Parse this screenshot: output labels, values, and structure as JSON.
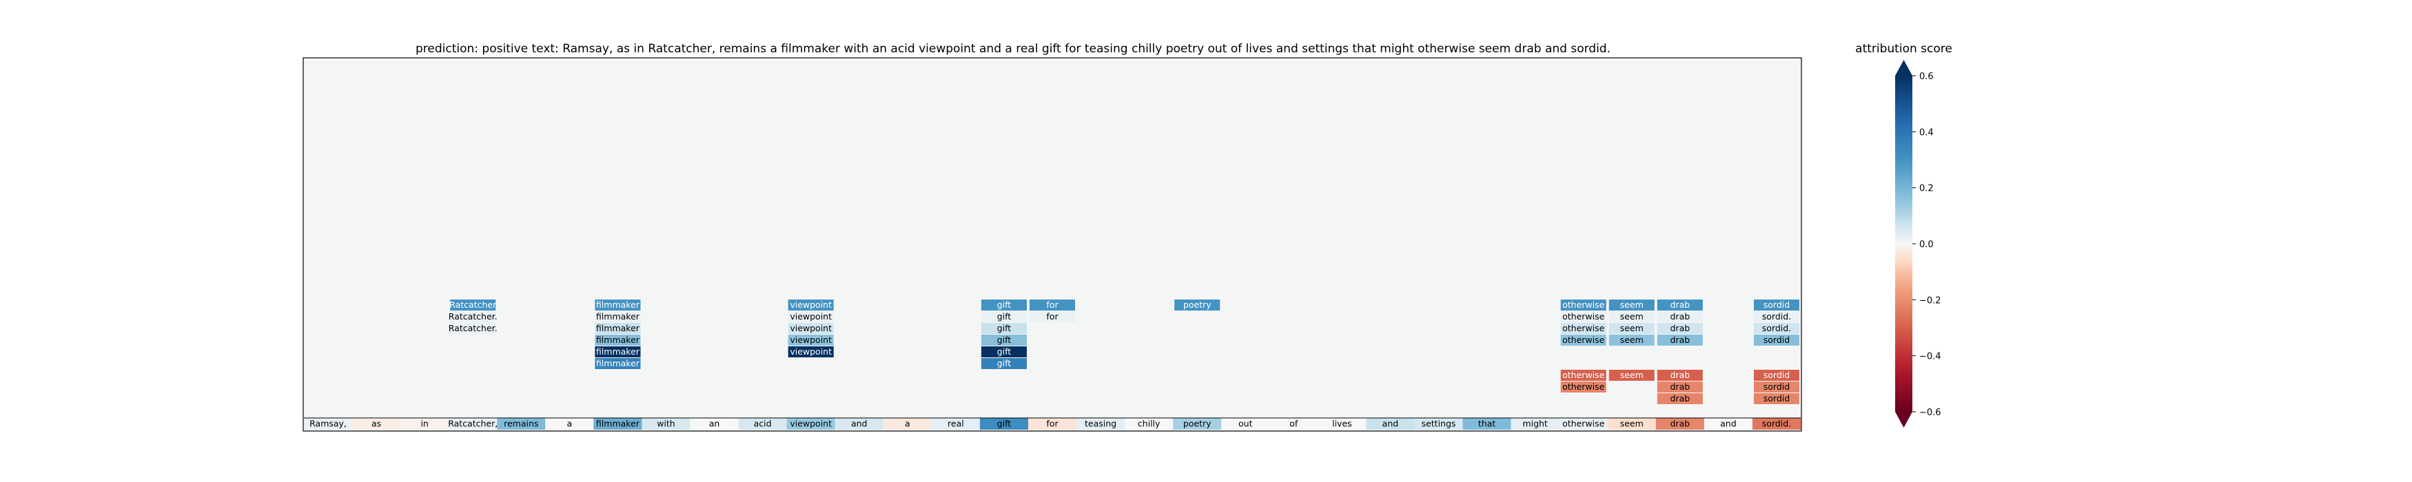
{
  "chart_data": {
    "type": "heatmap",
    "title": {
      "prediction_label": "prediction:",
      "prediction": "positive",
      "text_label": "text:",
      "text": "Ramsay, as in Ratcatcher, remains a filmmaker with an acid viewpoint and a real gift for teasing chilly poetry out of lives and settings that might otherwise seem drab and sordid."
    },
    "tokens": [
      "Ramsay,",
      "as",
      "in",
      "Ratcatcher,",
      "remains",
      "a",
      "filmmaker",
      "with",
      "an",
      "acid",
      "viewpoint",
      "and",
      "a",
      "real",
      "gift",
      "for",
      "teasing",
      "chilly",
      "poetry",
      "out",
      "of",
      "lives",
      "and",
      "settings",
      "that",
      "might",
      "otherwise",
      "seem",
      "drab",
      "and",
      "sordid."
    ],
    "base_row_scores": [
      0.02,
      -0.02,
      -0.01,
      0.02,
      0.18,
      0.0,
      0.22,
      0.05,
      0.0,
      0.05,
      0.14,
      0.05,
      -0.03,
      0.03,
      0.32,
      -0.04,
      0.03,
      0.0,
      0.12,
      0.0,
      0.0,
      0.0,
      0.07,
      0.05,
      0.18,
      0.03,
      0.02,
      -0.05,
      -0.22,
      0.0,
      -0.25
    ],
    "stack_cells": [
      {
        "token": "Ratcatcher",
        "level": 10,
        "score": 0.3,
        "text_color": "#ffffff"
      },
      {
        "token": "Ratcatcher.",
        "level": 9,
        "score": 0.02,
        "text_color": "#000000"
      },
      {
        "token": "Ratcatcher.",
        "level": 8,
        "score": 0.02,
        "text_color": "#000000"
      },
      {
        "token": "filmmaker",
        "level": 10,
        "score": 0.3,
        "text_color": "#ffffff"
      },
      {
        "token": "filmmaker",
        "level": 9,
        "score": 0.02,
        "text_color": "#000000"
      },
      {
        "token": "filmmaker",
        "level": 8,
        "score": 0.07,
        "text_color": "#000000"
      },
      {
        "token": "filmmaker",
        "level": 7,
        "score": 0.17,
        "text_color": "#000000"
      },
      {
        "token": "filmmaker",
        "level": 6,
        "score": 0.6,
        "text_color": "#ffffff"
      },
      {
        "token": "filmmaker",
        "level": 5,
        "score": 0.36,
        "text_color": "#ffffff"
      },
      {
        "token": "viewpoint",
        "level": 10,
        "score": 0.3,
        "text_color": "#ffffff"
      },
      {
        "token": "viewpoint",
        "level": 9,
        "score": 0.02,
        "text_color": "#000000"
      },
      {
        "token": "viewpoint",
        "level": 8,
        "score": 0.06,
        "text_color": "#000000"
      },
      {
        "token": "viewpoint",
        "level": 7,
        "score": 0.16,
        "text_color": "#000000"
      },
      {
        "token": "viewpoint",
        "level": 6,
        "score": 0.62,
        "text_color": "#ffffff"
      },
      {
        "token": "gift",
        "level": 10,
        "score": 0.3,
        "text_color": "#ffffff"
      },
      {
        "token": "gift",
        "level": 9,
        "score": 0.02,
        "text_color": "#000000"
      },
      {
        "token": "gift",
        "level": 8,
        "score": 0.07,
        "text_color": "#000000"
      },
      {
        "token": "gift",
        "level": 7,
        "score": 0.17,
        "text_color": "#000000"
      },
      {
        "token": "gift",
        "level": 6,
        "score": 0.62,
        "text_color": "#ffffff"
      },
      {
        "token": "gift",
        "level": 5,
        "score": 0.36,
        "text_color": "#ffffff"
      },
      {
        "token": "for",
        "level": 10,
        "score": 0.3,
        "text_color": "#ffffff"
      },
      {
        "token": "for",
        "level": 9,
        "score": 0.02,
        "text_color": "#000000"
      },
      {
        "token": "poetry",
        "level": 10,
        "score": 0.3,
        "text_color": "#ffffff"
      },
      {
        "token": "otherwise",
        "level": 10,
        "score": 0.3,
        "text_color": "#ffffff"
      },
      {
        "token": "otherwise",
        "level": 9,
        "score": 0.02,
        "text_color": "#000000"
      },
      {
        "token": "otherwise",
        "level": 8,
        "score": 0.06,
        "text_color": "#000000"
      },
      {
        "token": "otherwise",
        "level": 7,
        "score": 0.16,
        "text_color": "#000000"
      },
      {
        "token": "otherwise",
        "level": 4,
        "score": -0.3,
        "text_color": "#ffffff"
      },
      {
        "token": "otherwise",
        "level": 3,
        "score": -0.22,
        "text_color": "#000000"
      },
      {
        "token": "seem",
        "level": 10,
        "score": 0.3,
        "text_color": "#ffffff"
      },
      {
        "token": "seem",
        "level": 9,
        "score": 0.02,
        "text_color": "#000000"
      },
      {
        "token": "seem",
        "level": 8,
        "score": 0.06,
        "text_color": "#000000"
      },
      {
        "token": "seem",
        "level": 7,
        "score": 0.16,
        "text_color": "#000000"
      },
      {
        "token": "seem",
        "level": 4,
        "score": -0.3,
        "text_color": "#ffffff"
      },
      {
        "token": "drab",
        "level": 10,
        "score": 0.3,
        "text_color": "#ffffff"
      },
      {
        "token": "drab",
        "level": 9,
        "score": 0.02,
        "text_color": "#000000"
      },
      {
        "token": "drab",
        "level": 8,
        "score": 0.06,
        "text_color": "#000000"
      },
      {
        "token": "drab",
        "level": 7,
        "score": 0.17,
        "text_color": "#000000"
      },
      {
        "token": "drab",
        "level": 4,
        "score": -0.3,
        "text_color": "#ffffff"
      },
      {
        "token": "drab",
        "level": 3,
        "score": -0.22,
        "text_color": "#000000"
      },
      {
        "token": "drab",
        "level": 2,
        "score": -0.22,
        "text_color": "#000000"
      },
      {
        "token": "sordid",
        "level": 10,
        "score": 0.3,
        "text_color": "#ffffff"
      },
      {
        "token": "sordid.",
        "level": 9,
        "score": 0.02,
        "text_color": "#000000"
      },
      {
        "token": "sordid.",
        "level": 8,
        "score": 0.06,
        "text_color": "#000000"
      },
      {
        "token": "sordid",
        "level": 7,
        "score": 0.17,
        "text_color": "#000000"
      },
      {
        "token": "sordid",
        "level": 4,
        "score": -0.3,
        "text_color": "#ffffff"
      },
      {
        "token": "sordid",
        "level": 3,
        "score": -0.22,
        "text_color": "#000000"
      },
      {
        "token": "sordid",
        "level": 2,
        "score": -0.22,
        "text_color": "#000000"
      }
    ],
    "stack_columns": {
      "Ratcatcher": 3,
      "Ratcatcher.": 3,
      "filmmaker": 6,
      "viewpoint": 10,
      "gift": 14,
      "for": 15,
      "poetry": 18,
      "otherwise": 26,
      "seem": 27,
      "drab": 28,
      "sordid": 30,
      "sordid.": 30
    },
    "colorbar": {
      "label": "attribution score",
      "range": [
        -0.6,
        0.6
      ],
      "ticks": [
        0.6,
        0.4,
        0.2,
        0.0,
        -0.2,
        -0.4,
        -0.6
      ],
      "tick_labels": [
        "0.6",
        "0.4",
        "0.2",
        "0.0",
        "−0.2",
        "−0.4",
        "−0.6"
      ],
      "colormap": "RdBu"
    },
    "panel_background": "#f4f6f6"
  }
}
